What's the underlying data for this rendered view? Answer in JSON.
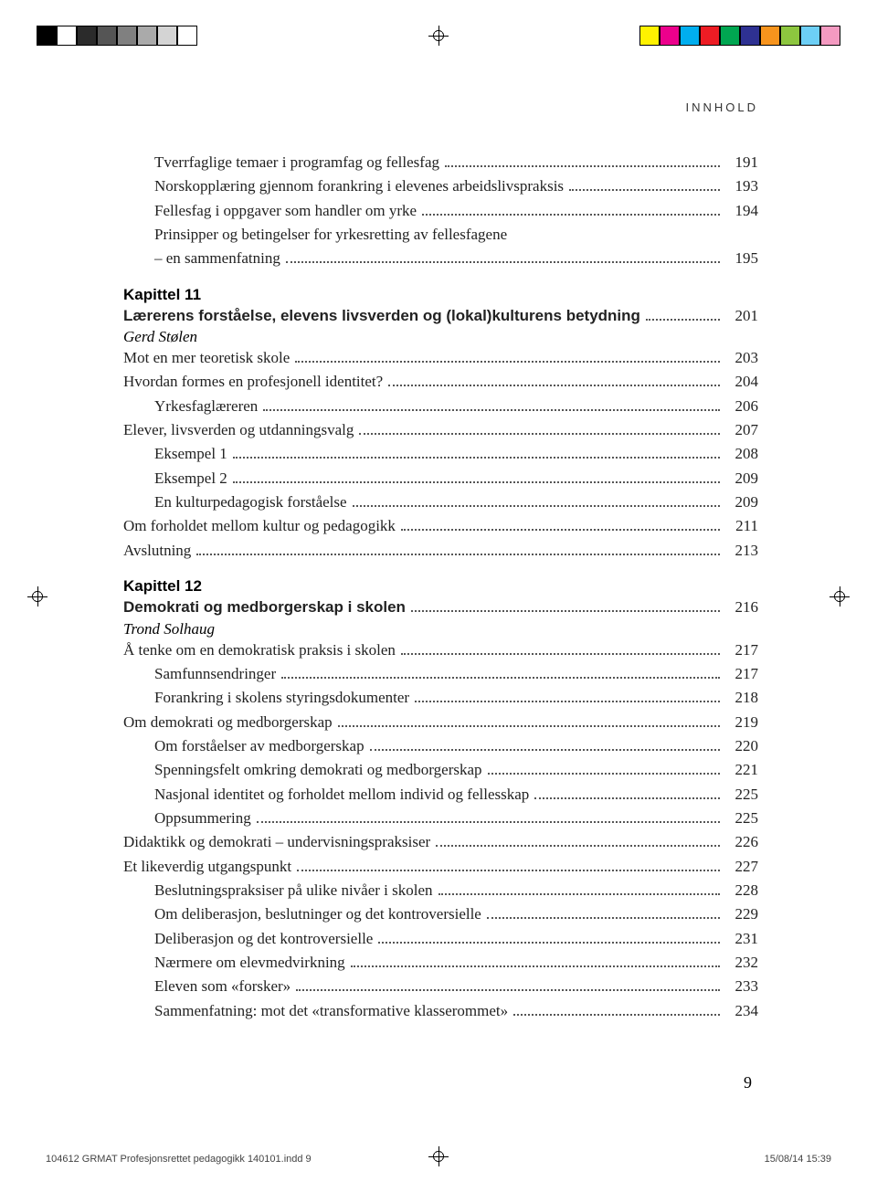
{
  "colorbar": {
    "left": [
      "#000000",
      "#ffffff",
      "#2b2b2b",
      "#555555",
      "#808080",
      "#aaaaaa",
      "#d4d4d4",
      "#ffffff"
    ],
    "right": [
      "#fff200",
      "#ec008c",
      "#00aeef",
      "#ed1c24",
      "#00a651",
      "#2e3192",
      "#f7941d",
      "#8dc63f",
      "#6dcff6",
      "#f49ac1"
    ]
  },
  "running_head": "INNHOLD",
  "toc": [
    {
      "indent": 1,
      "label": "Tverrfaglige temaer i programfag og fellesfag",
      "page": "191"
    },
    {
      "indent": 1,
      "label": "Norskopplæring gjennom forankring i elevenes arbeidslivspraksis",
      "page": "193"
    },
    {
      "indent": 1,
      "label": "Fellesfag i oppgaver som handler om yrke",
      "page": "194"
    },
    {
      "indent": 1,
      "label": "Prinsipper og betingelser for yrkesretting av fellesfagene",
      "continuation": "– en sammenfatning",
      "page": "195"
    },
    {
      "chapter": "Kapittel 11"
    },
    {
      "indent": 0,
      "bold": true,
      "label": "Lærerens forståelse, elevens livsverden og (lokal)kulturens betydning",
      "page": "201"
    },
    {
      "author": "Gerd Stølen"
    },
    {
      "indent": 0,
      "label": "Mot en mer teoretisk skole",
      "page": "203"
    },
    {
      "indent": 0,
      "label": "Hvordan formes en profesjonell identitet?",
      "page": "204"
    },
    {
      "indent": 1,
      "label": "Yrkesfaglæreren",
      "page": "206"
    },
    {
      "indent": 0,
      "label": "Elever, livsverden og utdanningsvalg",
      "page": "207"
    },
    {
      "indent": 1,
      "label": "Eksempel 1",
      "page": "208"
    },
    {
      "indent": 1,
      "label": "Eksempel 2",
      "page": "209"
    },
    {
      "indent": 1,
      "label": "En kulturpedagogisk forståelse",
      "page": "209"
    },
    {
      "indent": 0,
      "label": "Om forholdet mellom kultur og pedagogikk",
      "page": "211"
    },
    {
      "indent": 0,
      "label": "Avslutning",
      "page": "213"
    },
    {
      "chapter": "Kapittel 12"
    },
    {
      "indent": 0,
      "bold": true,
      "label": "Demokrati og medborgerskap i skolen",
      "page": "216"
    },
    {
      "author": "Trond Solhaug"
    },
    {
      "indent": 0,
      "label": "Å tenke om en demokratisk praksis i skolen",
      "page": "217"
    },
    {
      "indent": 1,
      "label": "Samfunnsendringer",
      "page": "217"
    },
    {
      "indent": 1,
      "label": "Forankring i skolens styringsdokumenter",
      "page": "218"
    },
    {
      "indent": 0,
      "label": "Om demokrati og medborgerskap",
      "page": "219"
    },
    {
      "indent": 1,
      "label": "Om forståelser av medborgerskap",
      "page": "220"
    },
    {
      "indent": 1,
      "label": "Spenningsfelt omkring demokrati og medborgerskap",
      "page": "221"
    },
    {
      "indent": 1,
      "label": "Nasjonal identitet og forholdet mellom individ og fellesskap",
      "page": "225"
    },
    {
      "indent": 1,
      "label": "Oppsummering",
      "page": "225"
    },
    {
      "indent": 0,
      "label": "Didaktikk og demokrati – undervisningspraksiser",
      "page": "226"
    },
    {
      "indent": 0,
      "label": "Et likeverdig utgangspunkt",
      "page": "227"
    },
    {
      "indent": 1,
      "label": "Beslutningspraksiser på ulike nivåer i skolen",
      "page": "228"
    },
    {
      "indent": 1,
      "label": "Om deliberasjon, beslutninger og det kontroversielle",
      "page": "229"
    },
    {
      "indent": 1,
      "label": "Deliberasjon og det kontroversielle",
      "page": "231"
    },
    {
      "indent": 1,
      "label": "Nærmere om elevmedvirkning",
      "page": "232"
    },
    {
      "indent": 1,
      "label": "Eleven som «forsker»",
      "page": "233"
    },
    {
      "indent": 1,
      "label": "Sammenfatning: mot det «transformative klasserommet»",
      "page": "234"
    }
  ],
  "page_number": "9",
  "footer_left": "104612 GRMAT Profesjonsrettet pedagogikk 140101.indd   9",
  "footer_right": "15/08/14   15:39"
}
